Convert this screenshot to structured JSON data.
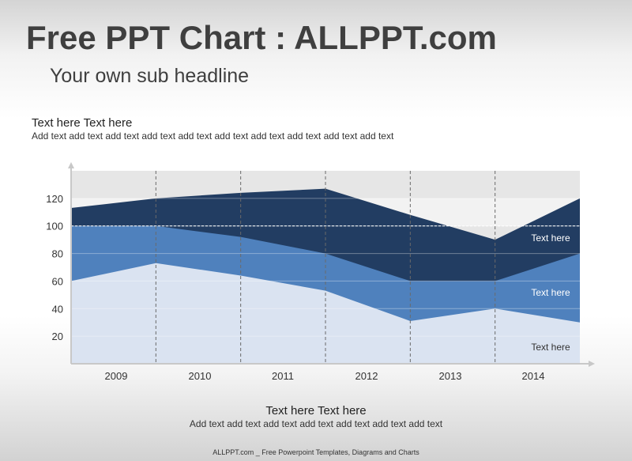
{
  "header": {
    "title": "Free PPT Chart : ALLPPT.com",
    "subtitle": "Your own sub headline"
  },
  "top_block": {
    "heading": "Text here Text here",
    "text": "Add text add text add text add text add text add text add text add text add text add text"
  },
  "bottom_block": {
    "heading": "Text here Text here",
    "text": "Add text add text add text add text add text add text add text"
  },
  "footer": {
    "text": "ALLPPT.com _ Free Powerpoint Templates, Diagrams and Charts"
  },
  "chart_data": {
    "type": "area",
    "categories": [
      "2009",
      "2010",
      "2011",
      "2012",
      "2013",
      "2014"
    ],
    "x_ticks": [
      20,
      40,
      60,
      80,
      100,
      120
    ],
    "ylim": [
      0,
      140
    ],
    "reference_line": 100,
    "grid": true,
    "colors": {
      "top": "#223d62",
      "middle": "#4f81bd",
      "bottom": "#dae3f1",
      "plot_bg": "#e6e6e6",
      "plot_bg_light": "#f2f2f2"
    },
    "series": [
      {
        "role": "bottom",
        "label": "Text here",
        "boundary": [
          60,
          73,
          64,
          53,
          31,
          40,
          30
        ]
      },
      {
        "role": "middle",
        "label": "Text here",
        "boundary": [
          100,
          100,
          92,
          80,
          60,
          60,
          80
        ]
      },
      {
        "role": "top",
        "label": "Text here",
        "boundary": [
          113,
          120,
          124,
          127,
          108,
          90,
          120
        ]
      }
    ],
    "boundary_x": [
      0,
      1,
      2,
      3,
      4,
      5,
      6
    ]
  }
}
